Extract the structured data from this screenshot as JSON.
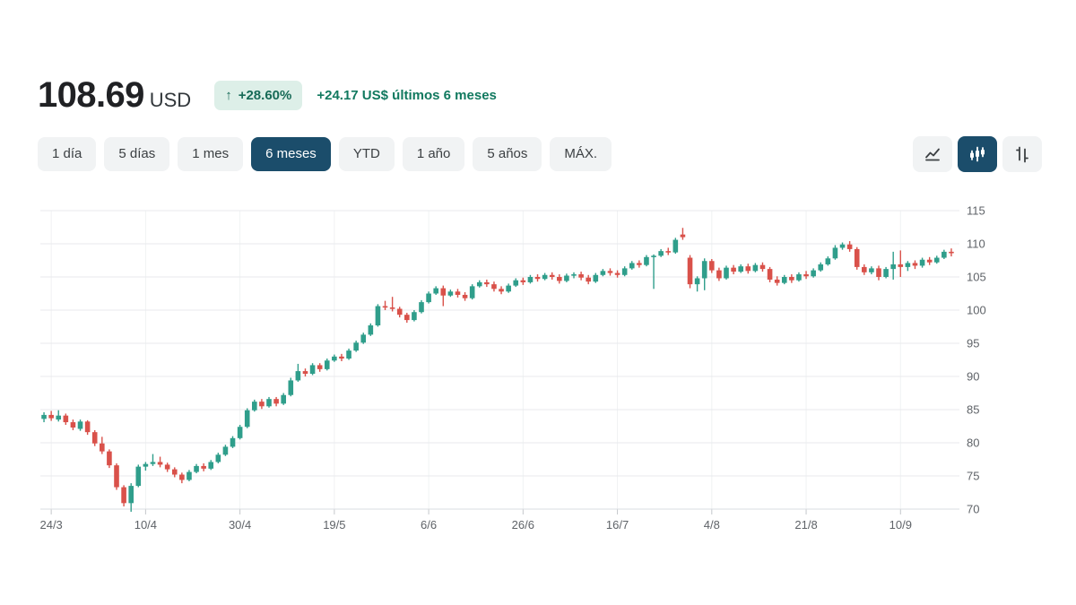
{
  "header": {
    "price": "108.69",
    "currency": "USD",
    "badge_arrow": "↑",
    "badge_percent": "+28.60%",
    "change_summary": "+24.17 US$ últimos 6 meses"
  },
  "toolbar": {
    "range_tabs": [
      {
        "id": "1-dia",
        "label": "1 día",
        "active": false
      },
      {
        "id": "5-dias",
        "label": "5 días",
        "active": false
      },
      {
        "id": "1-mes",
        "label": "1 mes",
        "active": false
      },
      {
        "id": "6-meses",
        "label": "6 meses",
        "active": true
      },
      {
        "id": "ytd",
        "label": "YTD",
        "active": false
      },
      {
        "id": "1-ano",
        "label": "1 año",
        "active": false
      },
      {
        "id": "5-anos",
        "label": "5 años",
        "active": false
      },
      {
        "id": "max",
        "label": "MÁX.",
        "active": false
      }
    ],
    "chart_type_buttons": [
      {
        "id": "line",
        "active": false
      },
      {
        "id": "candlestick",
        "active": true
      },
      {
        "id": "ohlc",
        "active": false
      }
    ]
  },
  "colors": {
    "up": "#2f9e8b",
    "down": "#d9514a",
    "badge_bg": "#ddefe8",
    "badge_text": "#176a57",
    "change_text": "#11795f",
    "active_control": "#1b4d6b",
    "control_bg": "#f1f3f4",
    "grid": "#e8eaed",
    "vgrid": "#f0f2f3",
    "axis": "#dadce0",
    "tick": "#c4c7cb",
    "axis_label": "#5f6368"
  },
  "chart_data": {
    "type": "candlestick",
    "title": "",
    "xlabel": "",
    "ylabel": "",
    "currency": "USD",
    "grid": true,
    "y_axis_side": "right",
    "y_ticks": [
      70,
      75,
      80,
      85,
      90,
      95,
      100,
      105,
      110,
      115
    ],
    "ylim": [
      68.5,
      116.5
    ],
    "x_labels": [
      "24/3",
      "10/4",
      "30/4",
      "19/5",
      "6/6",
      "26/6",
      "16/7",
      "4/8",
      "21/8",
      "10/9"
    ],
    "x_label_indices": [
      1,
      14,
      27,
      40,
      53,
      66,
      79,
      92,
      105,
      118
    ],
    "candles_format": [
      "open",
      "high",
      "low",
      "close"
    ],
    "candles": [
      [
        83.6,
        84.6,
        83.1,
        84.2
      ],
      [
        84.2,
        84.8,
        83.3,
        83.7
      ],
      [
        83.5,
        84.9,
        83.2,
        84.1
      ],
      [
        84.1,
        84.4,
        82.7,
        83.1
      ],
      [
        83.1,
        83.5,
        81.9,
        82.3
      ],
      [
        82.1,
        83.5,
        81.8,
        83.2
      ],
      [
        83.2,
        83.4,
        81.2,
        81.6
      ],
      [
        81.6,
        81.9,
        79.5,
        79.9
      ],
      [
        79.9,
        80.9,
        78.3,
        78.7
      ],
      [
        78.7,
        79.0,
        76.2,
        76.6
      ],
      [
        76.6,
        76.9,
        72.9,
        73.3
      ],
      [
        73.3,
        73.6,
        70.4,
        70.9
      ],
      [
        70.9,
        73.9,
        69.6,
        73.5
      ],
      [
        73.5,
        76.7,
        73.3,
        76.4
      ],
      [
        76.4,
        77.1,
        75.8,
        76.8
      ],
      [
        76.8,
        78.3,
        76.5,
        77.1
      ],
      [
        77.1,
        77.9,
        76.3,
        76.7
      ],
      [
        76.7,
        77.0,
        75.6,
        76.0
      ],
      [
        76.0,
        76.3,
        74.8,
        75.2
      ],
      [
        75.2,
        75.5,
        73.9,
        74.4
      ],
      [
        74.4,
        75.9,
        74.2,
        75.6
      ],
      [
        75.6,
        76.8,
        75.4,
        76.5
      ],
      [
        76.5,
        76.9,
        75.7,
        76.1
      ],
      [
        76.1,
        77.4,
        75.9,
        77.1
      ],
      [
        77.1,
        78.5,
        76.9,
        78.2
      ],
      [
        78.2,
        79.7,
        78.0,
        79.4
      ],
      [
        79.4,
        81.0,
        79.2,
        80.7
      ],
      [
        80.7,
        82.7,
        80.5,
        82.4
      ],
      [
        82.4,
        85.2,
        82.2,
        84.9
      ],
      [
        84.9,
        86.5,
        84.7,
        86.2
      ],
      [
        86.2,
        86.6,
        85.1,
        85.5
      ],
      [
        85.5,
        86.9,
        85.3,
        86.6
      ],
      [
        86.6,
        86.9,
        85.5,
        85.9
      ],
      [
        85.9,
        87.5,
        85.7,
        87.2
      ],
      [
        87.2,
        89.8,
        87.0,
        89.4
      ],
      [
        89.4,
        91.9,
        89.2,
        90.8
      ],
      [
        90.8,
        91.2,
        90.0,
        90.4
      ],
      [
        90.4,
        92.0,
        90.2,
        91.7
      ],
      [
        91.7,
        92.0,
        90.7,
        91.1
      ],
      [
        91.1,
        92.7,
        90.9,
        92.4
      ],
      [
        92.4,
        93.3,
        92.2,
        93.0
      ],
      [
        93.0,
        93.4,
        92.3,
        92.7
      ],
      [
        92.7,
        94.2,
        92.5,
        93.9
      ],
      [
        93.9,
        95.4,
        93.7,
        95.1
      ],
      [
        95.1,
        96.6,
        94.9,
        96.3
      ],
      [
        96.3,
        98.0,
        96.1,
        97.7
      ],
      [
        97.7,
        100.9,
        97.5,
        100.6
      ],
      [
        100.6,
        101.4,
        100.0,
        100.4
      ],
      [
        100.4,
        102.0,
        99.8,
        100.2
      ],
      [
        100.2,
        100.5,
        98.9,
        99.3
      ],
      [
        99.3,
        99.6,
        98.1,
        98.5
      ],
      [
        98.5,
        100.0,
        98.3,
        99.7
      ],
      [
        99.7,
        101.5,
        99.5,
        101.2
      ],
      [
        101.2,
        102.8,
        101.0,
        102.5
      ],
      [
        102.5,
        103.6,
        102.3,
        103.3
      ],
      [
        103.3,
        103.7,
        100.6,
        102.2
      ],
      [
        102.2,
        103.1,
        102.0,
        102.8
      ],
      [
        102.8,
        103.2,
        101.9,
        102.3
      ],
      [
        102.3,
        102.7,
        101.4,
        101.8
      ],
      [
        101.8,
        103.9,
        101.6,
        103.6
      ],
      [
        103.6,
        104.5,
        103.4,
        104.2
      ],
      [
        104.2,
        104.6,
        103.5,
        103.9
      ],
      [
        103.9,
        104.3,
        102.8,
        103.2
      ],
      [
        103.2,
        103.6,
        102.4,
        102.8
      ],
      [
        102.8,
        104.0,
        102.6,
        103.7
      ],
      [
        103.7,
        104.8,
        103.5,
        104.5
      ],
      [
        104.5,
        104.9,
        103.8,
        104.2
      ],
      [
        104.2,
        105.3,
        104.0,
        105.0
      ],
      [
        105.0,
        105.4,
        104.3,
        104.7
      ],
      [
        104.7,
        105.6,
        104.5,
        105.3
      ],
      [
        105.3,
        105.7,
        104.6,
        105.0
      ],
      [
        105.0,
        105.4,
        104.0,
        104.4
      ],
      [
        104.4,
        105.5,
        104.2,
        105.2
      ],
      [
        105.2,
        105.7,
        104.8,
        105.4
      ],
      [
        105.4,
        105.8,
        104.5,
        104.9
      ],
      [
        104.9,
        105.3,
        103.9,
        104.3
      ],
      [
        104.3,
        105.6,
        104.1,
        105.3
      ],
      [
        105.3,
        106.2,
        105.1,
        105.9
      ],
      [
        105.9,
        106.3,
        105.2,
        105.6
      ],
      [
        105.6,
        106.0,
        104.9,
        105.3
      ],
      [
        105.3,
        106.6,
        105.1,
        106.3
      ],
      [
        106.3,
        107.4,
        106.1,
        107.1
      ],
      [
        107.1,
        107.5,
        106.4,
        106.8
      ],
      [
        106.8,
        108.3,
        106.6,
        108.0
      ],
      [
        108.0,
        108.4,
        103.2,
        108.2
      ],
      [
        108.2,
        109.2,
        108.0,
        108.9
      ],
      [
        108.9,
        109.4,
        108.3,
        108.7
      ],
      [
        108.7,
        110.9,
        108.5,
        110.6
      ],
      [
        111.4,
        112.4,
        110.6,
        111.0
      ],
      [
        107.9,
        108.3,
        103.3,
        103.9
      ],
      [
        103.9,
        105.1,
        102.8,
        104.8
      ],
      [
        104.8,
        107.8,
        103.0,
        107.4
      ],
      [
        107.4,
        107.7,
        105.6,
        106.0
      ],
      [
        106.0,
        106.4,
        104.4,
        104.8
      ],
      [
        104.8,
        106.7,
        104.6,
        106.4
      ],
      [
        106.4,
        106.8,
        105.4,
        105.8
      ],
      [
        105.8,
        106.9,
        105.6,
        106.6
      ],
      [
        106.6,
        107.0,
        105.5,
        105.9
      ],
      [
        105.9,
        107.1,
        105.7,
        106.8
      ],
      [
        106.8,
        107.2,
        105.8,
        106.2
      ],
      [
        106.2,
        106.5,
        104.2,
        104.6
      ],
      [
        104.6,
        105.1,
        103.7,
        104.1
      ],
      [
        104.1,
        105.3,
        103.9,
        105.0
      ],
      [
        105.0,
        105.4,
        104.1,
        104.5
      ],
      [
        104.5,
        105.7,
        104.3,
        105.4
      ],
      [
        105.4,
        105.9,
        104.7,
        105.1
      ],
      [
        105.1,
        106.3,
        104.9,
        106.0
      ],
      [
        106.0,
        107.2,
        105.8,
        106.9
      ],
      [
        106.9,
        108.1,
        106.7,
        107.8
      ],
      [
        107.8,
        109.8,
        107.6,
        109.4
      ],
      [
        109.4,
        110.2,
        109.1,
        109.9
      ],
      [
        109.9,
        110.4,
        108.8,
        109.2
      ],
      [
        109.2,
        109.5,
        106.1,
        106.5
      ],
      [
        106.5,
        106.9,
        105.3,
        105.7
      ],
      [
        105.7,
        106.6,
        105.4,
        106.3
      ],
      [
        106.3,
        106.7,
        104.5,
        105.0
      ],
      [
        105.0,
        106.5,
        104.8,
        106.2
      ],
      [
        106.2,
        108.8,
        104.6,
        106.9
      ],
      [
        106.9,
        109.0,
        105.0,
        106.5
      ],
      [
        106.5,
        107.4,
        105.9,
        107.1
      ],
      [
        107.1,
        107.5,
        106.2,
        106.7
      ],
      [
        106.7,
        107.9,
        106.4,
        107.6
      ],
      [
        107.6,
        108.0,
        106.8,
        107.2
      ],
      [
        107.2,
        108.2,
        107.0,
        107.9
      ],
      [
        107.9,
        109.1,
        107.7,
        108.8
      ],
      [
        108.8,
        109.3,
        108.1,
        108.7
      ]
    ]
  }
}
